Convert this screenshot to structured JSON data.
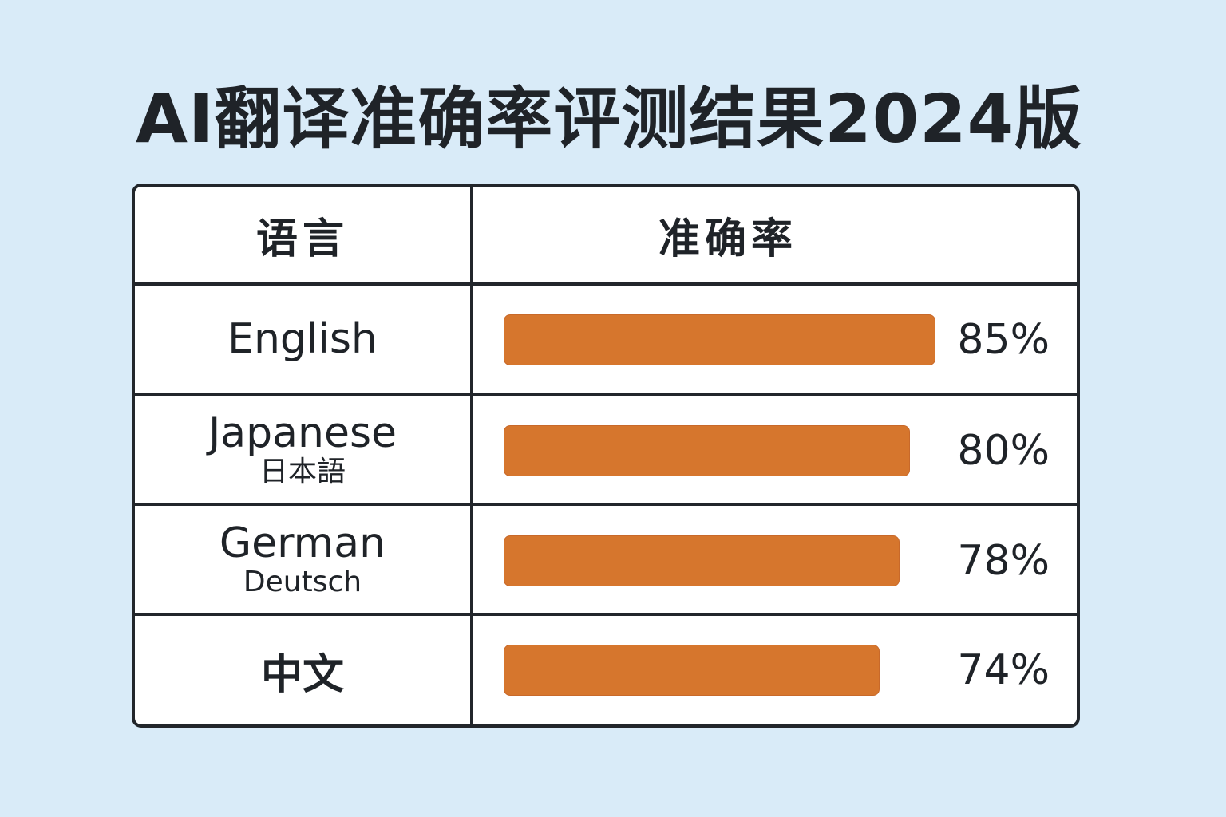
{
  "title": "AI翻译准确率评测结果2024版",
  "table": {
    "header": {
      "language": "语言",
      "accuracy": "准确率"
    },
    "rows": [
      {
        "language": "English",
        "subtitle": "",
        "value": 85,
        "label": "85%"
      },
      {
        "language": "Japanese",
        "subtitle": "日本語",
        "value": 80,
        "label": "80%"
      },
      {
        "language": "German",
        "subtitle": "Deutsch",
        "value": 78,
        "label": "78%"
      },
      {
        "language": "中文",
        "subtitle": "",
        "value": 74,
        "label": "74%"
      }
    ]
  },
  "colors": {
    "background": "#d9ebf8",
    "bar": "#d6762d",
    "border": "#22262b",
    "text": "#1f2328"
  },
  "chart_data": {
    "type": "bar",
    "orientation": "horizontal",
    "title": "AI翻译准确率评测结果2024版",
    "categories": [
      "English",
      "Japanese",
      "German",
      "中文"
    ],
    "values": [
      85,
      80,
      78,
      74
    ],
    "unit": "%",
    "xlim": [
      0,
      100
    ]
  }
}
